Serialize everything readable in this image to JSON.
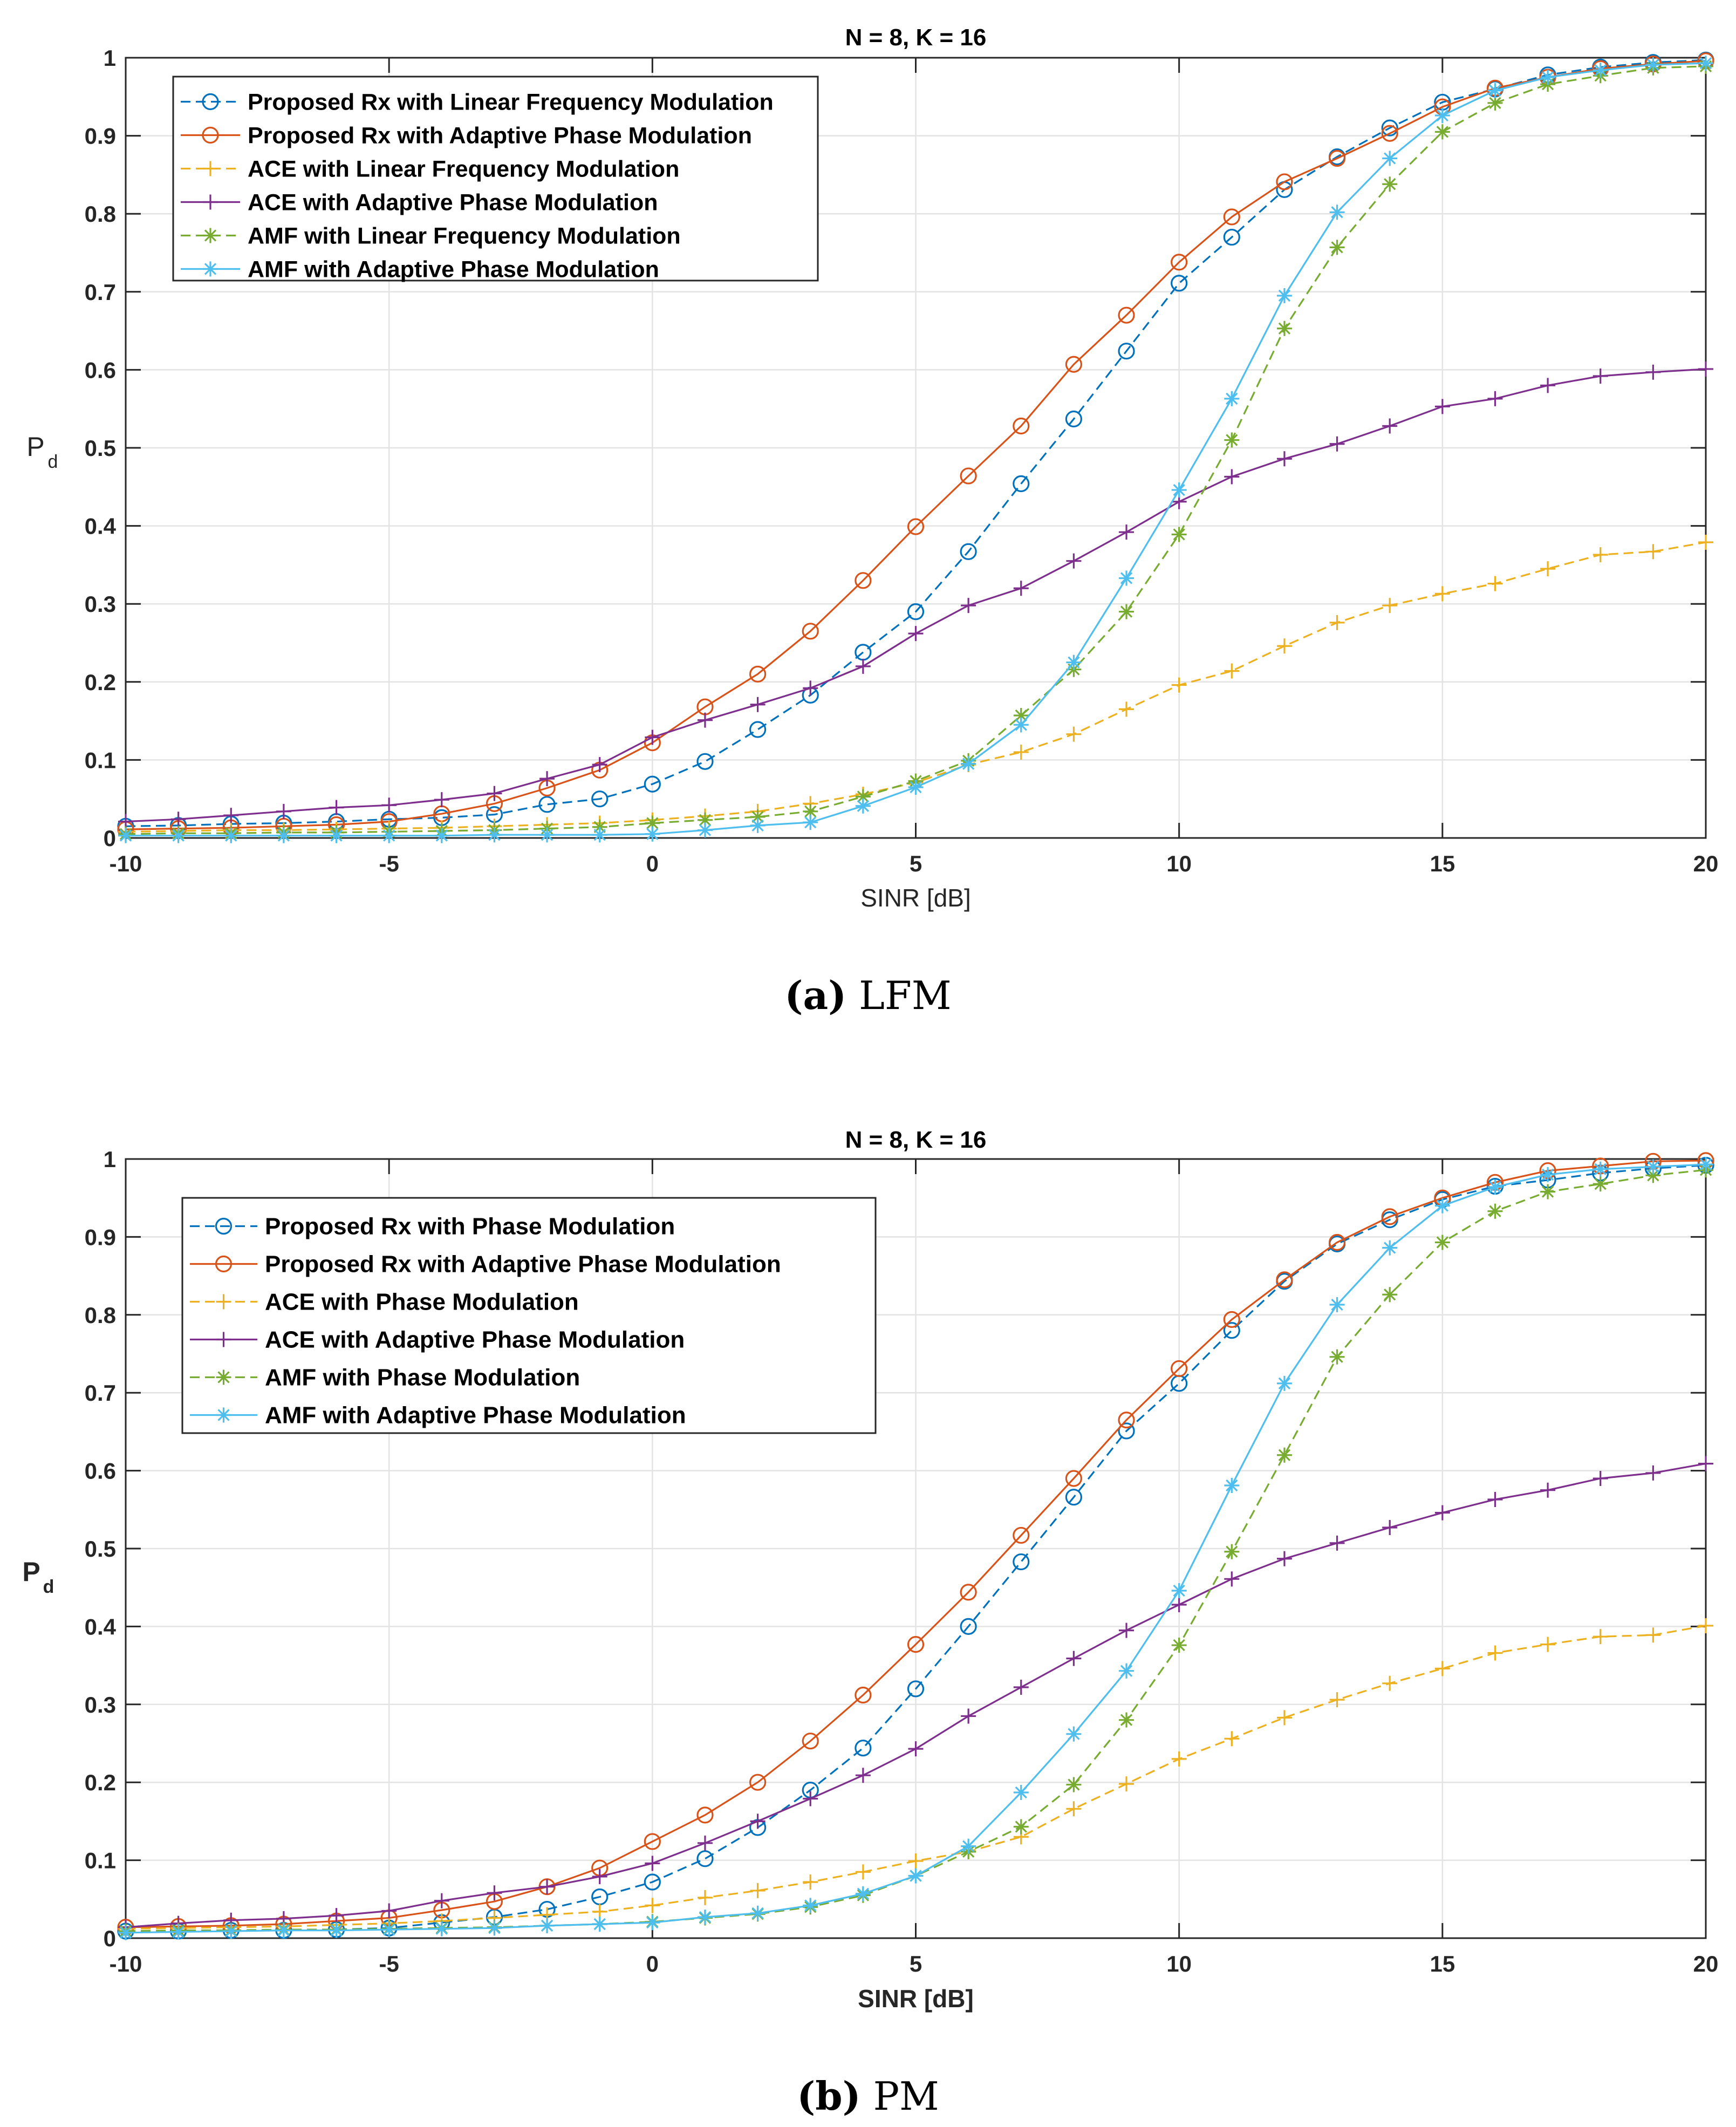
{
  "chart_data": [
    {
      "type": "line",
      "title": "N = 8, K = 16",
      "xlabel": "SINR [dB]",
      "ylabel": "P",
      "ylabel_sub": "d",
      "caption_label": "(a)",
      "caption_text": "LFM",
      "xlim": [
        -10,
        20
      ],
      "ylim": [
        0,
        1
      ],
      "x_ticks": [
        -10,
        -5,
        0,
        5,
        10,
        15,
        20
      ],
      "x_tick_labels": [
        "-10",
        "-5",
        "0",
        "5",
        "10",
        "15",
        "20"
      ],
      "y_ticks": [
        0,
        0.1,
        0.2,
        0.3,
        0.4,
        0.5,
        0.6,
        0.7,
        0.8,
        0.9,
        1
      ],
      "y_tick_labels": [
        "0",
        "0.1",
        "0.2",
        "0.3",
        "0.4",
        "0.5",
        "0.6",
        "0.7",
        "0.8",
        "0.9",
        "1"
      ],
      "grid": true,
      "legend_position": "top-left",
      "x": [
        -10,
        -9,
        -8,
        -7,
        -6,
        -5,
        -4,
        -3,
        -2,
        -1,
        0,
        1,
        2,
        3,
        4,
        5,
        6,
        7,
        8,
        9,
        10,
        11,
        12,
        13,
        14,
        15,
        16,
        17,
        18,
        19,
        20
      ],
      "series": [
        {
          "name": "Proposed Rx with Linear Frequency Modulation",
          "color": "#0072BD",
          "dash": true,
          "marker": "circle",
          "values": [
            0.015,
            0.016,
            0.018,
            0.019,
            0.021,
            0.024,
            0.026,
            0.03,
            0.043,
            0.05,
            0.069,
            0.098,
            0.139,
            0.183,
            0.238,
            0.29,
            0.367,
            0.454,
            0.537,
            0.624,
            0.711,
            0.77,
            0.831,
            0.873,
            0.91,
            0.943,
            0.96,
            0.978,
            0.988,
            0.994,
            0.997
          ]
        },
        {
          "name": "Proposed Rx with Adaptive Phase Modulation",
          "color": "#D95319",
          "dash": false,
          "marker": "circle",
          "values": [
            0.011,
            0.012,
            0.013,
            0.015,
            0.017,
            0.021,
            0.031,
            0.044,
            0.064,
            0.087,
            0.122,
            0.168,
            0.21,
            0.265,
            0.33,
            0.399,
            0.464,
            0.528,
            0.607,
            0.67,
            0.738,
            0.796,
            0.841,
            0.871,
            0.903,
            0.937,
            0.961,
            0.975,
            0.986,
            0.992,
            0.996
          ]
        },
        {
          "name": "ACE with Linear Frequency Modulation",
          "color": "#EDB120",
          "dash": true,
          "marker": "plus",
          "values": [
            0.008,
            0.009,
            0.01,
            0.01,
            0.011,
            0.012,
            0.013,
            0.015,
            0.017,
            0.019,
            0.023,
            0.028,
            0.034,
            0.044,
            0.056,
            0.071,
            0.094,
            0.11,
            0.133,
            0.165,
            0.196,
            0.214,
            0.246,
            0.276,
            0.298,
            0.313,
            0.326,
            0.345,
            0.363,
            0.367,
            0.379
          ]
        },
        {
          "name": "ACE with Adaptive Phase Modulation",
          "color": "#7E2F8E",
          "dash": false,
          "marker": "plus",
          "values": [
            0.021,
            0.024,
            0.029,
            0.034,
            0.039,
            0.042,
            0.049,
            0.057,
            0.076,
            0.094,
            0.129,
            0.151,
            0.171,
            0.192,
            0.22,
            0.262,
            0.298,
            0.32,
            0.355,
            0.392,
            0.431,
            0.463,
            0.486,
            0.505,
            0.528,
            0.553,
            0.563,
            0.58,
            0.592,
            0.597,
            0.601
          ]
        },
        {
          "name": "AMF with Linear Frequency Modulation",
          "color": "#77AC30",
          "dash": true,
          "marker": "asterisk",
          "values": [
            0.005,
            0.006,
            0.006,
            0.007,
            0.007,
            0.008,
            0.009,
            0.01,
            0.012,
            0.014,
            0.019,
            0.023,
            0.027,
            0.034,
            0.053,
            0.073,
            0.099,
            0.157,
            0.216,
            0.29,
            0.389,
            0.51,
            0.653,
            0.757,
            0.838,
            0.905,
            0.942,
            0.966,
            0.977,
            0.987,
            0.989
          ]
        },
        {
          "name": "AMF with Adaptive Phase Modulation",
          "color": "#4DBEEE",
          "dash": false,
          "marker": "asterisk",
          "values": [
            0.003,
            0.003,
            0.003,
            0.003,
            0.003,
            0.003,
            0.003,
            0.004,
            0.004,
            0.004,
            0.005,
            0.01,
            0.016,
            0.02,
            0.041,
            0.065,
            0.095,
            0.145,
            0.225,
            0.333,
            0.446,
            0.563,
            0.695,
            0.802,
            0.871,
            0.926,
            0.958,
            0.975,
            0.984,
            0.991,
            0.993
          ]
        }
      ]
    },
    {
      "type": "line",
      "title": "N = 8, K = 16",
      "xlabel": "SINR [dB]",
      "ylabel": "P",
      "ylabel_sub": "d",
      "caption_label": "(b)",
      "caption_text": "PM",
      "xlim": [
        -10,
        20
      ],
      "ylim": [
        0,
        1
      ],
      "x_ticks": [
        -10,
        -5,
        0,
        5,
        10,
        15,
        20
      ],
      "x_tick_labels": [
        "-10",
        "-5",
        "0",
        "5",
        "10",
        "15",
        "20"
      ],
      "y_ticks": [
        0,
        0.1,
        0.2,
        0.3,
        0.4,
        0.5,
        0.6,
        0.7,
        0.8,
        0.9,
        1
      ],
      "y_tick_labels": [
        "0",
        "0.1",
        "0.2",
        "0.3",
        "0.4",
        "0.5",
        "0.6",
        "0.7",
        "0.8",
        "0.9",
        "1"
      ],
      "grid": true,
      "legend_position": "top-left",
      "x": [
        -10,
        -9,
        -8,
        -7,
        -6,
        -5,
        -4,
        -3,
        -2,
        -1,
        0,
        1,
        2,
        3,
        4,
        5,
        6,
        7,
        8,
        9,
        10,
        11,
        12,
        13,
        14,
        15,
        16,
        17,
        18,
        19,
        20
      ],
      "series": [
        {
          "name": "Proposed Rx with Phase Modulation",
          "color": "#0072BD",
          "dash": true,
          "marker": "circle",
          "values": [
            0.009,
            0.009,
            0.01,
            0.01,
            0.011,
            0.013,
            0.02,
            0.027,
            0.037,
            0.053,
            0.072,
            0.102,
            0.142,
            0.19,
            0.244,
            0.32,
            0.4,
            0.483,
            0.566,
            0.651,
            0.712,
            0.78,
            0.843,
            0.891,
            0.922,
            0.948,
            0.965,
            0.973,
            0.982,
            0.988,
            0.992
          ]
        },
        {
          "name": "Proposed Rx with Adaptive Phase Modulation",
          "color": "#D95319",
          "dash": false,
          "marker": "circle",
          "values": [
            0.014,
            0.015,
            0.016,
            0.018,
            0.022,
            0.026,
            0.036,
            0.047,
            0.066,
            0.09,
            0.124,
            0.158,
            0.2,
            0.253,
            0.312,
            0.377,
            0.444,
            0.517,
            0.59,
            0.665,
            0.731,
            0.794,
            0.845,
            0.893,
            0.926,
            0.95,
            0.97,
            0.985,
            0.991,
            0.997,
            0.998
          ]
        },
        {
          "name": "ACE with Phase Modulation",
          "color": "#EDB120",
          "dash": true,
          "marker": "plus",
          "values": [
            0.012,
            0.013,
            0.014,
            0.015,
            0.017,
            0.019,
            0.022,
            0.026,
            0.03,
            0.034,
            0.042,
            0.052,
            0.061,
            0.072,
            0.085,
            0.099,
            0.111,
            0.13,
            0.166,
            0.198,
            0.23,
            0.256,
            0.283,
            0.306,
            0.327,
            0.346,
            0.366,
            0.377,
            0.387,
            0.389,
            0.401
          ]
        },
        {
          "name": "ACE with Adaptive Phase Modulation",
          "color": "#7E2F8E",
          "dash": false,
          "marker": "plus",
          "values": [
            0.014,
            0.019,
            0.023,
            0.025,
            0.029,
            0.035,
            0.048,
            0.058,
            0.066,
            0.079,
            0.096,
            0.122,
            0.15,
            0.179,
            0.209,
            0.243,
            0.285,
            0.322,
            0.359,
            0.395,
            0.428,
            0.461,
            0.487,
            0.507,
            0.527,
            0.546,
            0.563,
            0.575,
            0.59,
            0.597,
            0.609
          ]
        },
        {
          "name": "AMF with Phase Modulation",
          "color": "#77AC30",
          "dash": true,
          "marker": "asterisk",
          "values": [
            0.009,
            0.01,
            0.01,
            0.011,
            0.011,
            0.012,
            0.013,
            0.014,
            0.016,
            0.018,
            0.021,
            0.026,
            0.031,
            0.04,
            0.055,
            0.08,
            0.111,
            0.143,
            0.197,
            0.28,
            0.376,
            0.496,
            0.62,
            0.746,
            0.826,
            0.893,
            0.933,
            0.958,
            0.968,
            0.979,
            0.986
          ]
        },
        {
          "name": "AMF with Adaptive Phase Modulation",
          "color": "#4DBEEE",
          "dash": false,
          "marker": "asterisk",
          "values": [
            0.007,
            0.008,
            0.009,
            0.01,
            0.01,
            0.011,
            0.012,
            0.013,
            0.016,
            0.018,
            0.02,
            0.027,
            0.032,
            0.042,
            0.057,
            0.08,
            0.118,
            0.187,
            0.262,
            0.343,
            0.446,
            0.581,
            0.712,
            0.813,
            0.886,
            0.94,
            0.964,
            0.98,
            0.987,
            0.99,
            0.993
          ]
        }
      ]
    }
  ]
}
